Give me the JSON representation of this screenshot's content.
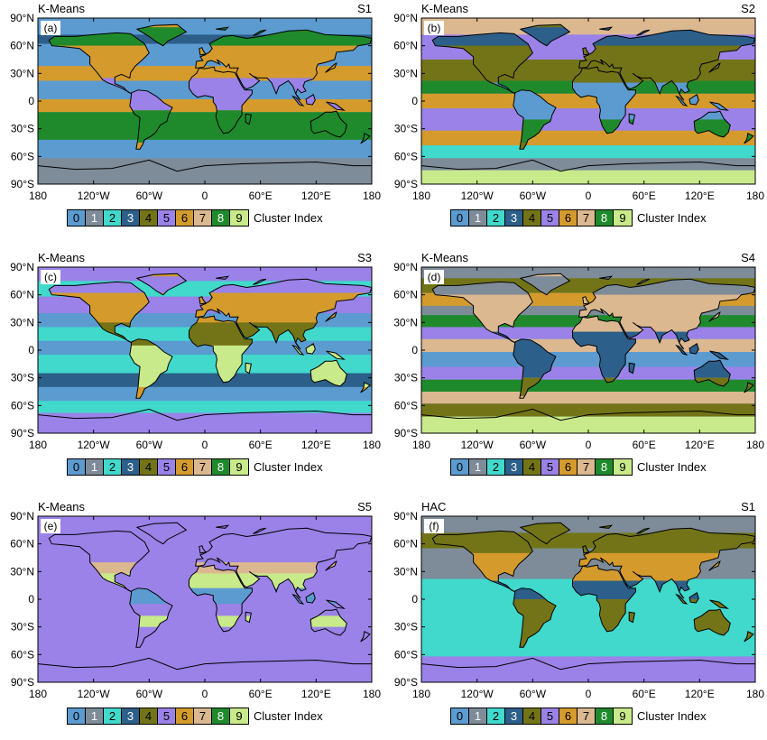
{
  "palette": {
    "0": "#5b9bd0",
    "1": "#7e8b99",
    "2": "#40d9cc",
    "3": "#2c5f8a",
    "4": "#737417",
    "5": "#9a82e8",
    "6": "#d49b2c",
    "7": "#dcb891",
    "8": "#1f8a2b",
    "9": "#c8ea8a"
  },
  "colorbar": {
    "label": "Cluster Index",
    "entries": [
      "0",
      "1",
      "2",
      "3",
      "4",
      "5",
      "6",
      "7",
      "8",
      "9"
    ]
  },
  "axes": {
    "lat_labels": [
      "90°N",
      "60°N",
      "30°N",
      "0",
      "30°S",
      "60°S",
      "90°S"
    ],
    "lon_labels": [
      "180",
      "120°W",
      "60°W",
      "0",
      "60°E",
      "120°E",
      "180"
    ]
  },
  "panels": [
    {
      "id": "a",
      "label": "(a)",
      "method": "K-Means",
      "scenario": "S1",
      "land": 6,
      "ocean": 0,
      "bands": [
        {
          "lat": [
            90,
            72
          ],
          "kind": "ocean",
          "cluster": 0
        },
        {
          "lat": [
            72,
            62
          ],
          "kind": "ocean",
          "cluster": 3
        },
        {
          "lat": [
            62,
            38
          ],
          "kind": "ocean",
          "cluster": 0
        },
        {
          "lat": [
            38,
            22
          ],
          "kind": "ocean",
          "cluster": 6
        },
        {
          "lat": [
            22,
            2
          ],
          "kind": "ocean",
          "cluster": 0
        },
        {
          "lat": [
            2,
            -12
          ],
          "kind": "ocean",
          "cluster": 6
        },
        {
          "lat": [
            -12,
            -42
          ],
          "kind": "ocean",
          "cluster": 8
        },
        {
          "lat": [
            -42,
            -62
          ],
          "kind": "ocean",
          "cluster": 0
        },
        {
          "lat": [
            -62,
            -90
          ],
          "kind": "ocean",
          "cluster": 1
        },
        {
          "lat": [
            80,
            60
          ],
          "kind": "land",
          "cluster": 8
        },
        {
          "lat": [
            60,
            25
          ],
          "kind": "land",
          "cluster": 6
        },
        {
          "lat": [
            25,
            -10
          ],
          "kind": "land",
          "cluster": 5
        },
        {
          "lat": [
            -10,
            -45
          ],
          "kind": "land",
          "cluster": 8
        }
      ]
    },
    {
      "id": "b",
      "label": "(b)",
      "method": "K-Means",
      "scenario": "S2",
      "land": 4,
      "ocean": 5,
      "bands": [
        {
          "lat": [
            90,
            72
          ],
          "kind": "ocean",
          "cluster": 7
        },
        {
          "lat": [
            72,
            45
          ],
          "kind": "ocean",
          "cluster": 5
        },
        {
          "lat": [
            45,
            22
          ],
          "kind": "ocean",
          "cluster": 4
        },
        {
          "lat": [
            22,
            8
          ],
          "kind": "ocean",
          "cluster": 8
        },
        {
          "lat": [
            8,
            -8
          ],
          "kind": "ocean",
          "cluster": 6
        },
        {
          "lat": [
            -8,
            -32
          ],
          "kind": "ocean",
          "cluster": 5
        },
        {
          "lat": [
            -32,
            -48
          ],
          "kind": "ocean",
          "cluster": 6
        },
        {
          "lat": [
            -48,
            -62
          ],
          "kind": "ocean",
          "cluster": 2
        },
        {
          "lat": [
            -62,
            -75
          ],
          "kind": "ocean",
          "cluster": 1
        },
        {
          "lat": [
            -75,
            -90
          ],
          "kind": "ocean",
          "cluster": 9
        },
        {
          "lat": [
            80,
            60
          ],
          "kind": "land",
          "cluster": 3
        },
        {
          "lat": [
            60,
            20
          ],
          "kind": "land",
          "cluster": 4
        },
        {
          "lat": [
            20,
            -20
          ],
          "kind": "land",
          "cluster": 0
        },
        {
          "lat": [
            -20,
            -45
          ],
          "kind": "land",
          "cluster": 8
        }
      ]
    },
    {
      "id": "c",
      "label": "(c)",
      "method": "K-Means",
      "scenario": "S3",
      "land": 6,
      "ocean": 0,
      "bands": [
        {
          "lat": [
            90,
            75
          ],
          "kind": "ocean",
          "cluster": 5
        },
        {
          "lat": [
            75,
            58
          ],
          "kind": "ocean",
          "cluster": 2
        },
        {
          "lat": [
            58,
            40
          ],
          "kind": "ocean",
          "cluster": 5
        },
        {
          "lat": [
            40,
            25
          ],
          "kind": "ocean",
          "cluster": 0
        },
        {
          "lat": [
            25,
            10
          ],
          "kind": "ocean",
          "cluster": 2
        },
        {
          "lat": [
            10,
            -5
          ],
          "kind": "ocean",
          "cluster": 0
        },
        {
          "lat": [
            -5,
            -25
          ],
          "kind": "ocean",
          "cluster": 2
        },
        {
          "lat": [
            -25,
            -40
          ],
          "kind": "ocean",
          "cluster": 3
        },
        {
          "lat": [
            -40,
            -55
          ],
          "kind": "ocean",
          "cluster": 0
        },
        {
          "lat": [
            -55,
            -68
          ],
          "kind": "ocean",
          "cluster": 2
        },
        {
          "lat": [
            -68,
            -90
          ],
          "kind": "ocean",
          "cluster": 5
        },
        {
          "lat": [
            80,
            62
          ],
          "kind": "land",
          "cluster": 5
        },
        {
          "lat": [
            62,
            30
          ],
          "kind": "land",
          "cluster": 6
        },
        {
          "lat": [
            30,
            5
          ],
          "kind": "land",
          "cluster": 4
        },
        {
          "lat": [
            5,
            -40
          ],
          "kind": "land",
          "cluster": 9
        }
      ]
    },
    {
      "id": "d",
      "label": "(d)",
      "method": "K-Means",
      "scenario": "S4",
      "land": 7,
      "ocean": 0,
      "bands": [
        {
          "lat": [
            90,
            78
          ],
          "kind": "ocean",
          "cluster": 1
        },
        {
          "lat": [
            78,
            62
          ],
          "kind": "ocean",
          "cluster": 4
        },
        {
          "lat": [
            62,
            48
          ],
          "kind": "ocean",
          "cluster": 6
        },
        {
          "lat": [
            48,
            38
          ],
          "kind": "ocean",
          "cluster": 1
        },
        {
          "lat": [
            38,
            25
          ],
          "kind": "ocean",
          "cluster": 8
        },
        {
          "lat": [
            25,
            12
          ],
          "kind": "ocean",
          "cluster": 5
        },
        {
          "lat": [
            12,
            -2
          ],
          "kind": "ocean",
          "cluster": 7
        },
        {
          "lat": [
            -2,
            -18
          ],
          "kind": "ocean",
          "cluster": 0
        },
        {
          "lat": [
            -18,
            -32
          ],
          "kind": "ocean",
          "cluster": 5
        },
        {
          "lat": [
            -32,
            -45
          ],
          "kind": "ocean",
          "cluster": 8
        },
        {
          "lat": [
            -45,
            -58
          ],
          "kind": "ocean",
          "cluster": 7
        },
        {
          "lat": [
            -58,
            -72
          ],
          "kind": "ocean",
          "cluster": 4
        },
        {
          "lat": [
            -72,
            -90
          ],
          "kind": "ocean",
          "cluster": 9
        },
        {
          "lat": [
            80,
            60
          ],
          "kind": "land",
          "cluster": 1
        },
        {
          "lat": [
            60,
            20
          ],
          "kind": "land",
          "cluster": 7
        },
        {
          "lat": [
            20,
            -30
          ],
          "kind": "land",
          "cluster": 3
        },
        {
          "lat": [
            -30,
            -50
          ],
          "kind": "land",
          "cluster": 4
        }
      ]
    },
    {
      "id": "e",
      "label": "(e)",
      "method": "K-Means",
      "scenario": "S5",
      "land": 5,
      "ocean": 5,
      "bands": [
        {
          "lat": [
            90,
            -90
          ],
          "kind": "ocean",
          "cluster": 5
        },
        {
          "lat": [
            40,
            5
          ],
          "kind": "land",
          "cluster": 7
        },
        {
          "lat": [
            28,
            12
          ],
          "kind": "land",
          "cluster": 9
        },
        {
          "lat": [
            12,
            -5
          ],
          "kind": "land",
          "cluster": 0
        },
        {
          "lat": [
            -18,
            -30
          ],
          "kind": "land",
          "cluster": 9
        }
      ]
    },
    {
      "id": "f",
      "label": "(f)",
      "method": "HAC",
      "scenario": "S1",
      "land": 4,
      "ocean": 2,
      "bands": [
        {
          "lat": [
            90,
            72
          ],
          "kind": "ocean",
          "cluster": 1
        },
        {
          "lat": [
            72,
            55
          ],
          "kind": "ocean",
          "cluster": 4
        },
        {
          "lat": [
            55,
            22
          ],
          "kind": "ocean",
          "cluster": 1
        },
        {
          "lat": [
            22,
            -62
          ],
          "kind": "ocean",
          "cluster": 2
        },
        {
          "lat": [
            -62,
            -90
          ],
          "kind": "ocean",
          "cluster": 5
        },
        {
          "lat": [
            80,
            50
          ],
          "kind": "land",
          "cluster": 4
        },
        {
          "lat": [
            50,
            20
          ],
          "kind": "land",
          "cluster": 6
        },
        {
          "lat": [
            20,
            0
          ],
          "kind": "land",
          "cluster": 3
        },
        {
          "lat": [
            0,
            -40
          ],
          "kind": "land",
          "cluster": 4
        }
      ]
    }
  ]
}
